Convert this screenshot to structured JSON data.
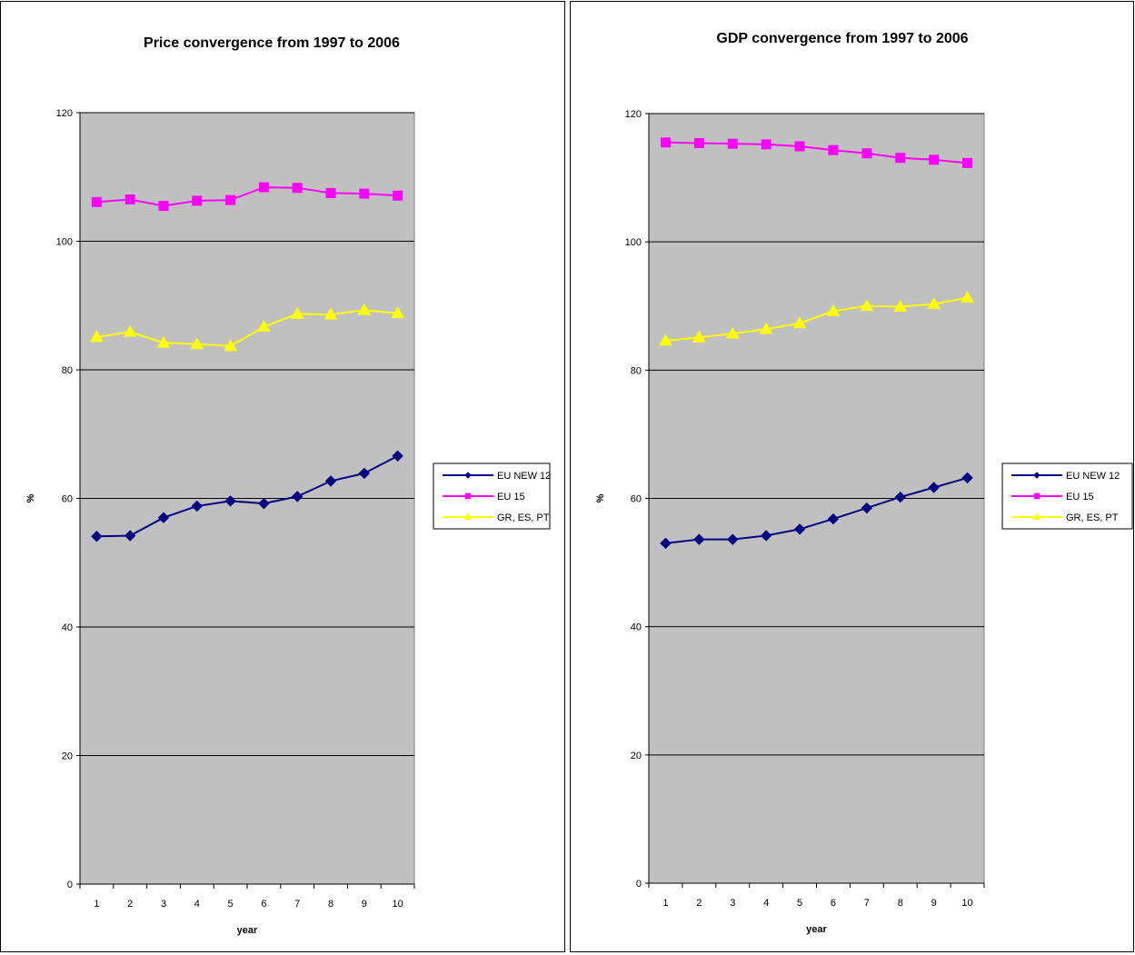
{
  "chart_data": [
    {
      "type": "line",
      "title": "Price convergence from 1997 to 2006",
      "xlabel": "year",
      "ylabel": "%",
      "categories": [
        "1",
        "2",
        "3",
        "4",
        "5",
        "6",
        "7",
        "8",
        "9",
        "10"
      ],
      "ylim": [
        0,
        120
      ],
      "yticks": [
        "0",
        "20",
        "40",
        "60",
        "80",
        "100",
        "120"
      ],
      "grid": true,
      "legend": "right",
      "series": [
        {
          "name": "EU NEW 12",
          "color": "#000080",
          "marker": "diamond",
          "values": [
            54.1,
            54.2,
            57.0,
            58.8,
            59.6,
            59.2,
            60.3,
            62.7,
            63.9,
            66.6
          ]
        },
        {
          "name": "EU 15",
          "color": "#ff00ff",
          "marker": "square",
          "values": [
            106.1,
            106.5,
            105.5,
            106.3,
            106.4,
            108.4,
            108.3,
            107.5,
            107.4,
            107.1
          ]
        },
        {
          "name": "GR, ES, PT",
          "color": "#ffff00",
          "marker": "triangle",
          "values": [
            85.1,
            85.9,
            84.2,
            84.0,
            83.7,
            86.7,
            88.7,
            88.6,
            89.3,
            88.8
          ]
        }
      ]
    },
    {
      "type": "line",
      "title": "GDP convergence from 1997 to 2006",
      "xlabel": "year",
      "ylabel": "%",
      "categories": [
        "1",
        "2",
        "3",
        "4",
        "5",
        "6",
        "7",
        "8",
        "9",
        "10"
      ],
      "ylim": [
        0,
        120
      ],
      "yticks": [
        "0",
        "20",
        "40",
        "60",
        "80",
        "100",
        "120"
      ],
      "grid": true,
      "legend": "right",
      "series": [
        {
          "name": "EU NEW 12",
          "color": "#000080",
          "marker": "diamond",
          "values": [
            53.0,
            53.6,
            53.6,
            54.2,
            55.2,
            56.8,
            58.5,
            60.2,
            61.7,
            63.2
          ]
        },
        {
          "name": "EU 15",
          "color": "#ff00ff",
          "marker": "square",
          "values": [
            115.5,
            115.4,
            115.3,
            115.2,
            114.9,
            114.3,
            113.8,
            113.1,
            112.8,
            112.3
          ]
        },
        {
          "name": "GR, ES, PT",
          "color": "#ffff00",
          "marker": "triangle",
          "values": [
            84.6,
            85.1,
            85.7,
            86.4,
            87.3,
            89.2,
            90.0,
            89.9,
            90.3,
            91.3
          ]
        }
      ]
    }
  ]
}
